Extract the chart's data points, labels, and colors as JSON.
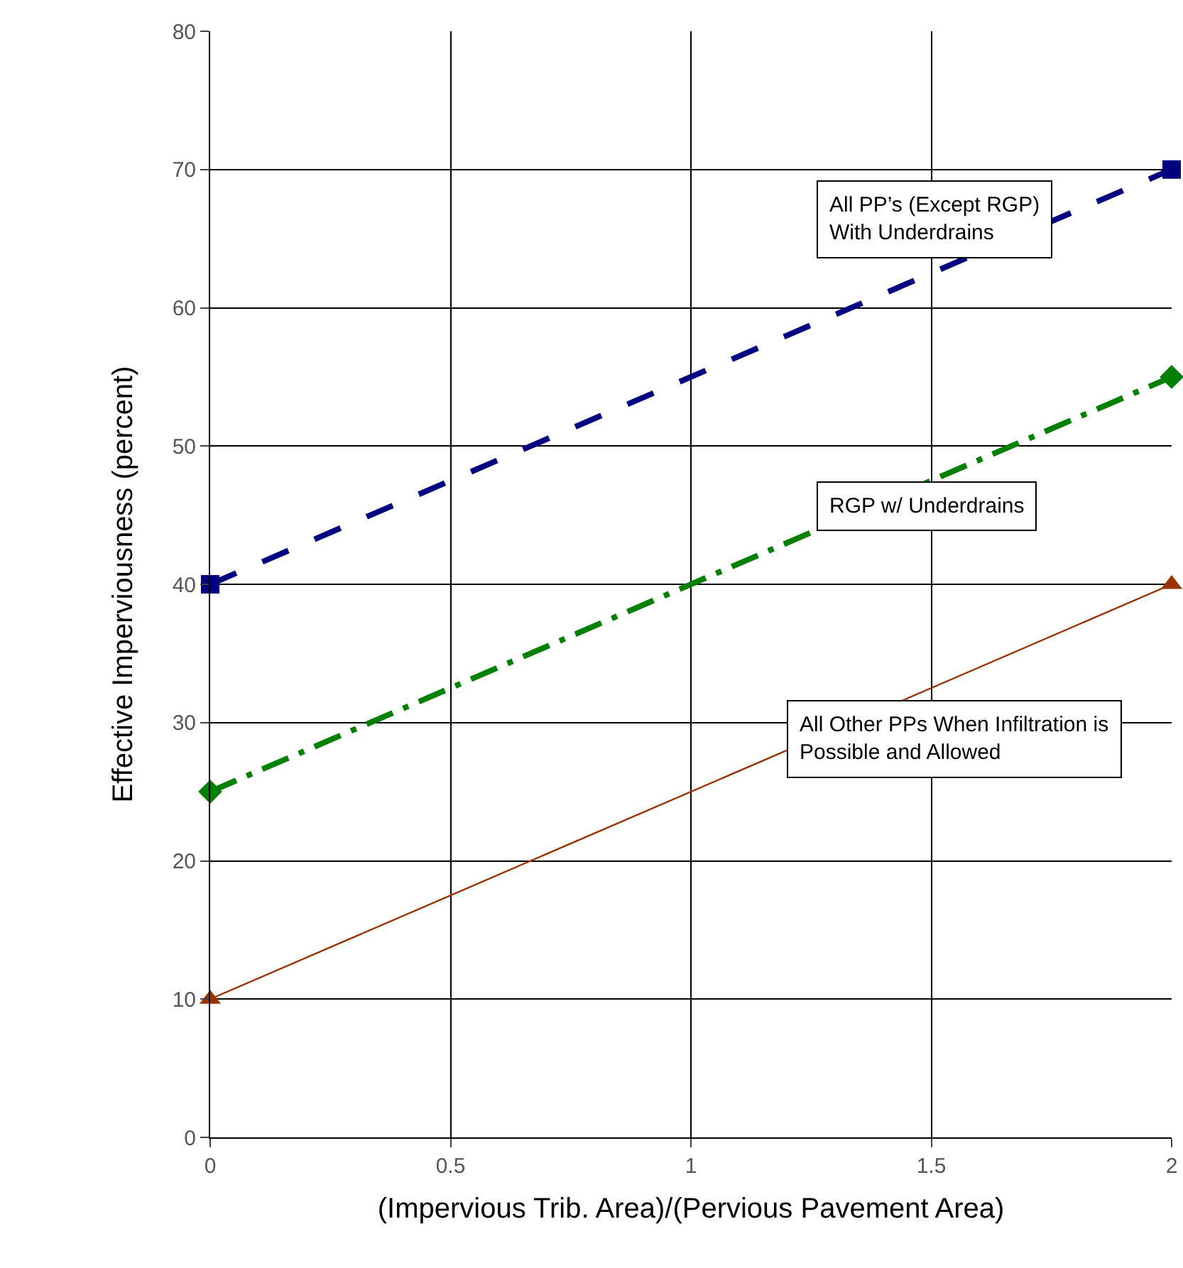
{
  "chart_data": {
    "type": "line",
    "xlabel": "(Impervious Trib. Area)/(Pervious Pavement Area)",
    "ylabel": "Effective Imperviousness (percent)",
    "x": [
      0,
      2
    ],
    "xlim": [
      0,
      2
    ],
    "xticks": [
      0,
      0.5,
      1,
      1.5,
      2
    ],
    "ylim": [
      0,
      80
    ],
    "yticks": [
      0,
      10,
      20,
      30,
      40,
      50,
      60,
      70,
      80
    ],
    "grid": true,
    "legend": false,
    "series": [
      {
        "name": "All PP’s (Except RGP)\nWith Underdrains",
        "color": "#000080",
        "values": [
          40,
          70
        ],
        "marker": "square",
        "line_style": "dashed"
      },
      {
        "name": "RGP w/ Underdrains",
        "color": "#008000",
        "values": [
          25,
          55
        ],
        "marker": "diamond",
        "line_style": "dashdot"
      },
      {
        "name": "All Other PPs When Infiltration is\nPossible and Allowed",
        "color": "#993300",
        "values": [
          10,
          40
        ],
        "marker": "triangle",
        "line_style": "solid"
      }
    ]
  }
}
